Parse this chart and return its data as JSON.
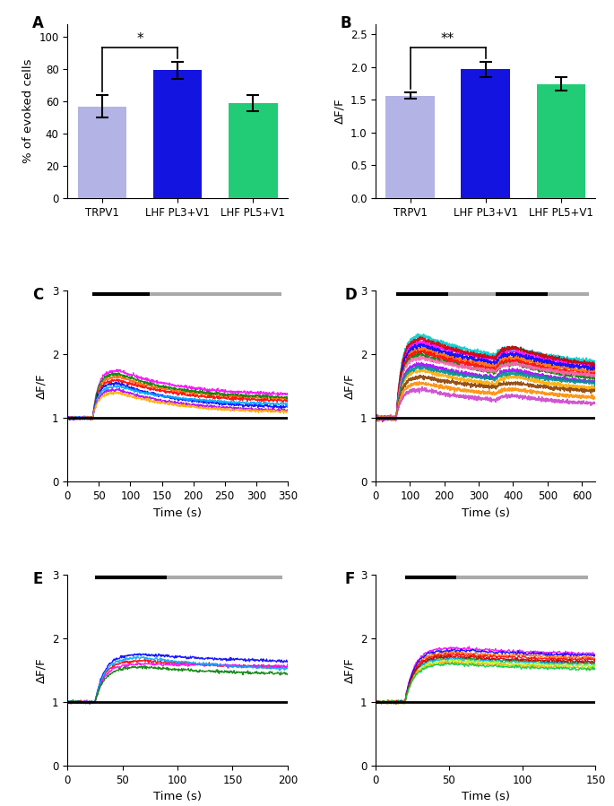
{
  "panel_A": {
    "categories": [
      "TRPV1",
      "LHF PL3+V1",
      "LHF PL5+V1"
    ],
    "values": [
      56.9,
      79.3,
      58.75
    ],
    "errors": [
      7.0,
      5.5,
      5.0
    ],
    "colors": [
      "#b3b3e6",
      "#1414e0",
      "#22cc77"
    ],
    "ylabel": "% of evoked cells",
    "ylim": [
      0,
      108
    ],
    "yticks": [
      0,
      20,
      40,
      60,
      80,
      100
    ],
    "sig_label": "*",
    "sig_x1": 0,
    "sig_x2": 1
  },
  "panel_B": {
    "categories": [
      "TRPV1",
      "LHF PL3+V1",
      "LHF PL5+V1"
    ],
    "values": [
      1.56,
      1.96,
      1.74
    ],
    "errors": [
      0.05,
      0.12,
      0.1
    ],
    "colors": [
      "#b3b3e6",
      "#1414e0",
      "#22cc77"
    ],
    "ylabel": "ΔF/F",
    "ylim": [
      0.0,
      2.65
    ],
    "yticks": [
      0.0,
      0.5,
      1.0,
      1.5,
      2.0,
      2.5
    ],
    "sig_label": "**",
    "sig_x1": 0,
    "sig_x2": 1
  },
  "panel_C": {
    "xlabel": "Time (s)",
    "ylabel": "ΔF/F",
    "xlim": [
      0,
      350
    ],
    "ylim": [
      0,
      3
    ],
    "xticks": [
      0,
      50,
      100,
      150,
      200,
      250,
      300,
      350
    ],
    "yticks": [
      0,
      1,
      2,
      3
    ],
    "black_bar": [
      40,
      130
    ],
    "gray_bar": [
      130,
      340
    ],
    "trace_colors": [
      "#ff00ff",
      "#ff6600",
      "#ff0000",
      "#008000",
      "#0000ff",
      "#00aaff",
      "#aa00ff",
      "#ffaa00"
    ],
    "baseline": 1.0,
    "peak_vals": [
      1.75,
      1.65,
      1.6,
      1.7,
      1.55,
      1.5,
      1.45,
      1.4
    ],
    "end_vals": [
      1.35,
      1.28,
      1.25,
      1.3,
      1.15,
      1.2,
      1.1,
      1.08
    ]
  },
  "panel_D": {
    "xlabel": "Time (s)",
    "ylabel": "ΔF/F",
    "xlim": [
      0,
      640
    ],
    "ylim": [
      0,
      3
    ],
    "xticks": [
      0,
      100,
      200,
      300,
      400,
      500,
      600
    ],
    "yticks": [
      0,
      1,
      2,
      3
    ],
    "black_bar": [
      60,
      210
    ],
    "gray_bar": [
      210,
      620
    ],
    "second_black_bar": [
      350,
      500
    ],
    "trace_colors": [
      "#ff00ff",
      "#ff6600",
      "#ff0000",
      "#008000",
      "#0000ff",
      "#00cccc",
      "#aa00ff",
      "#ffaa00",
      "#cc0000",
      "#ff69b4",
      "#009090",
      "#8b4000",
      "#ff8c00",
      "#cc44cc"
    ],
    "baseline": 1.0,
    "peak_vals": [
      2.2,
      2.1,
      2.05,
      2.0,
      2.15,
      2.3,
      1.85,
      1.75,
      2.25,
      1.95,
      1.8,
      1.65,
      1.55,
      1.45
    ],
    "second_peak_vals": [
      2.05,
      1.95,
      1.9,
      1.85,
      2.0,
      2.1,
      1.75,
      1.65,
      2.1,
      1.85,
      1.7,
      1.55,
      1.45,
      1.35
    ],
    "end_vals": [
      1.75,
      1.65,
      1.6,
      1.55,
      1.7,
      1.8,
      1.5,
      1.4,
      1.75,
      1.6,
      1.5,
      1.38,
      1.28,
      1.18
    ]
  },
  "panel_E": {
    "xlabel": "Time (s)",
    "ylabel": "ΔF/F",
    "xlim": [
      0,
      200
    ],
    "ylim": [
      0,
      3
    ],
    "xticks": [
      0,
      50,
      100,
      150,
      200
    ],
    "yticks": [
      0,
      1,
      2,
      3
    ],
    "black_bar": [
      25,
      90
    ],
    "gray_bar": [
      90,
      195
    ],
    "trace_colors": [
      "#0000ff",
      "#ff0000",
      "#ff00ff",
      "#00aaff",
      "#008000"
    ],
    "baseline": 1.0,
    "peak_vals": [
      1.75,
      1.65,
      1.6,
      1.7,
      1.55
    ],
    "end_vals": [
      1.6,
      1.5,
      1.55,
      1.45,
      1.4
    ]
  },
  "panel_F": {
    "xlabel": "Time (s)",
    "ylabel": "ΔF/F",
    "xlim": [
      0,
      150
    ],
    "ylim": [
      0,
      3
    ],
    "xticks": [
      0,
      50,
      100,
      150
    ],
    "yticks": [
      0,
      1,
      2,
      3
    ],
    "black_bar": [
      20,
      55
    ],
    "gray_bar": [
      55,
      145
    ],
    "trace_colors": [
      "#ff00ff",
      "#ff6600",
      "#ff0000",
      "#008000",
      "#0000ff",
      "#00aaff",
      "#aaff00",
      "#ffaa00",
      "#cc0000",
      "#00cc44"
    ],
    "baseline": 1.0,
    "peak_vals": [
      1.85,
      1.78,
      1.75,
      1.7,
      1.82,
      1.68,
      1.65,
      1.62,
      1.72,
      1.6
    ],
    "end_vals": [
      1.72,
      1.66,
      1.63,
      1.58,
      1.7,
      1.56,
      1.53,
      1.5,
      1.6,
      1.48
    ]
  },
  "background_color": "#ffffff",
  "label_fontsize": 12,
  "tick_fontsize": 8.5,
  "axis_label_fontsize": 9.5
}
